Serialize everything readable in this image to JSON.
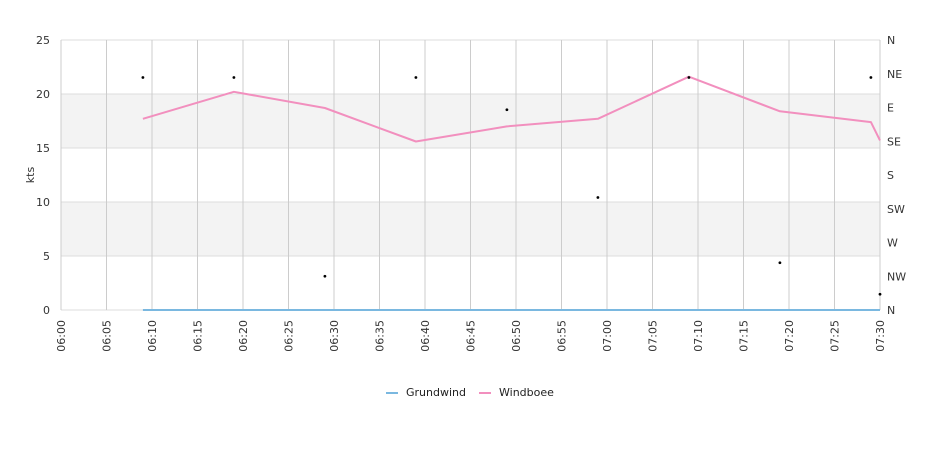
{
  "chart_data": {
    "type": "line",
    "ylabel": "kts",
    "ylim": [
      0,
      25
    ],
    "y_ticks": [
      "0",
      "5",
      "10",
      "15",
      "20",
      "25"
    ],
    "y_bands": [
      [
        5,
        10
      ],
      [
        15,
        20
      ]
    ],
    "x_ticks": [
      "06:00",
      "06:05",
      "06:10",
      "06:15",
      "06:20",
      "06:25",
      "06:30",
      "06:35",
      "06:40",
      "06:45",
      "06:50",
      "06:55",
      "07:00",
      "07:05",
      "07:10",
      "07:15",
      "07:20",
      "07:25",
      "07:30"
    ],
    "x_range": [
      "06:00",
      "07:30"
    ],
    "right_axis": {
      "labels": [
        "N",
        "NW",
        "W",
        "SW",
        "S",
        "SE",
        "E",
        "NE",
        "N"
      ],
      "range_degrees": [
        0,
        360
      ]
    },
    "series": [
      {
        "name": "Grundwind",
        "color": "#7ab8e0",
        "points": [
          {
            "x": "06:09",
            "y": 0
          },
          {
            "x": "06:19",
            "y": 0
          },
          {
            "x": "06:29",
            "y": 0
          },
          {
            "x": "06:39",
            "y": 0
          },
          {
            "x": "06:49",
            "y": 0
          },
          {
            "x": "06:59",
            "y": 0
          },
          {
            "x": "07:09",
            "y": 0
          },
          {
            "x": "07:19",
            "y": 0
          },
          {
            "x": "07:30",
            "y": 0
          }
        ]
      },
      {
        "name": "Windboee",
        "color": "#f28fbe",
        "points": [
          {
            "x": "06:09",
            "y": 17.7
          },
          {
            "x": "06:19",
            "y": 20.2
          },
          {
            "x": "06:29",
            "y": 18.7
          },
          {
            "x": "06:39",
            "y": 15.6
          },
          {
            "x": "06:49",
            "y": 17.0
          },
          {
            "x": "06:59",
            "y": 17.7
          },
          {
            "x": "07:09",
            "y": 21.6
          },
          {
            "x": "07:19",
            "y": 18.4
          },
          {
            "x": "07:29",
            "y": 17.4
          },
          {
            "x": "07:30",
            "y": 15.7
          }
        ]
      }
    ],
    "direction_points": [
      {
        "x": "06:09",
        "deg": 310
      },
      {
        "x": "06:19",
        "deg": 310
      },
      {
        "x": "06:29",
        "deg": 45
      },
      {
        "x": "06:39",
        "deg": 310
      },
      {
        "x": "06:49",
        "deg": 267
      },
      {
        "x": "06:59",
        "deg": 150
      },
      {
        "x": "07:09",
        "deg": 310
      },
      {
        "x": "07:19",
        "deg": 63
      },
      {
        "x": "07:29",
        "deg": 310
      },
      {
        "x": "07:30",
        "deg": 21
      }
    ],
    "legend": {
      "position": "bottom-center"
    }
  }
}
